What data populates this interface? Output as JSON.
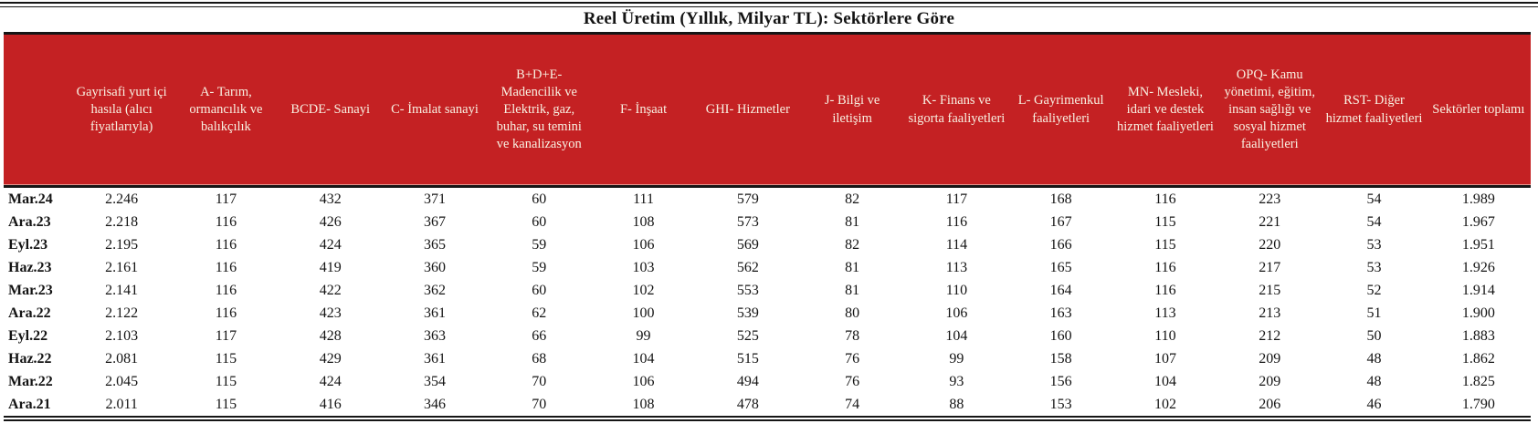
{
  "title": "Reel Üretim (Yıllık, Milyar TL): Sektörlere Göre",
  "colors": {
    "header_bg": "#c42123",
    "header_text": "#f8f1e2",
    "rule": "#151515",
    "text": "#141414"
  },
  "table": {
    "columns": [
      "",
      "Gayrisafi yurt içi hasıla (alıcı fiyatlarıyla)",
      "A- Tarım, ormancılık ve balıkçılık",
      "BCDE- Sanayi",
      "C- İmalat sanayi",
      "B+D+E- Madencilik ve Elektrik, gaz, buhar, su temini ve kanalizasyon",
      "F- İnşaat",
      "GHI- Hizmetler",
      "J- Bilgi ve iletişim",
      "K- Finans ve sigorta faaliyetleri",
      "L- Gayrimenkul faaliyetleri",
      "MN- Mesleki, idari ve destek hizmet faaliyetleri",
      "OPQ- Kamu yönetimi, eğitim, insan sağlığı ve sosyal hizmet faaliyetleri",
      "RST- Diğer hizmet faaliyetleri",
      "Sektörler toplamı"
    ],
    "rows": [
      {
        "label": "Mar.24",
        "values": [
          "2.246",
          "117",
          "432",
          "371",
          "60",
          "111",
          "579",
          "82",
          "117",
          "168",
          "116",
          "223",
          "54",
          "1.989"
        ]
      },
      {
        "label": "Ara.23",
        "values": [
          "2.218",
          "116",
          "426",
          "367",
          "60",
          "108",
          "573",
          "81",
          "116",
          "167",
          "115",
          "221",
          "54",
          "1.967"
        ]
      },
      {
        "label": "Eyl.23",
        "values": [
          "2.195",
          "116",
          "424",
          "365",
          "59",
          "106",
          "569",
          "82",
          "114",
          "166",
          "115",
          "220",
          "53",
          "1.951"
        ]
      },
      {
        "label": "Haz.23",
        "values": [
          "2.161",
          "116",
          "419",
          "360",
          "59",
          "103",
          "562",
          "81",
          "113",
          "165",
          "116",
          "217",
          "53",
          "1.926"
        ]
      },
      {
        "label": "Mar.23",
        "values": [
          "2.141",
          "116",
          "422",
          "362",
          "60",
          "102",
          "553",
          "81",
          "110",
          "164",
          "116",
          "215",
          "52",
          "1.914"
        ]
      },
      {
        "label": "Ara.22",
        "values": [
          "2.122",
          "116",
          "423",
          "361",
          "62",
          "100",
          "539",
          "80",
          "106",
          "163",
          "113",
          "213",
          "51",
          "1.900"
        ]
      },
      {
        "label": "Eyl.22",
        "values": [
          "2.103",
          "117",
          "428",
          "363",
          "66",
          "99",
          "525",
          "78",
          "104",
          "160",
          "110",
          "212",
          "50",
          "1.883"
        ]
      },
      {
        "label": "Haz.22",
        "values": [
          "2.081",
          "115",
          "429",
          "361",
          "68",
          "104",
          "515",
          "76",
          "99",
          "158",
          "107",
          "209",
          "48",
          "1.862"
        ]
      },
      {
        "label": "Mar.22",
        "values": [
          "2.045",
          "115",
          "424",
          "354",
          "70",
          "106",
          "494",
          "76",
          "93",
          "156",
          "104",
          "209",
          "48",
          "1.825"
        ]
      },
      {
        "label": "Ara.21",
        "values": [
          "2.011",
          "115",
          "416",
          "346",
          "70",
          "108",
          "478",
          "74",
          "88",
          "153",
          "102",
          "206",
          "46",
          "1.790"
        ]
      }
    ]
  }
}
